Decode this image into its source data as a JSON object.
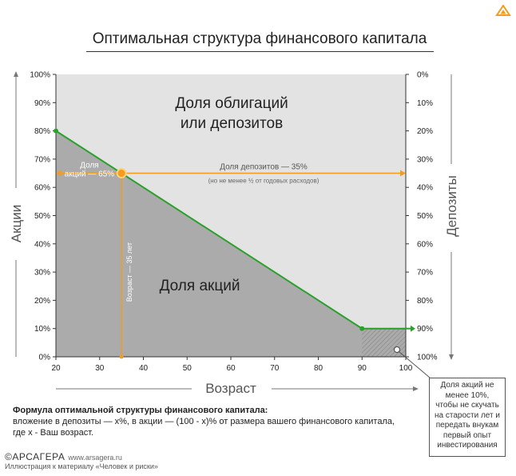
{
  "title": "Оптимальная структура финансового капитала",
  "formula": {
    "heading": "Формула оптимальной структуры финансового капитала:",
    "line1": "вложение в депозиты — x%, в акции — (100 - x)% от размера вашего финансового капитала,",
    "line2": "где x - Ваш возраст."
  },
  "footer": {
    "brand": "©АРСАГЕРА",
    "site": "www.arsagera.ru",
    "credit": "Иллюстрация к материалу «Человек и риски»"
  },
  "callout": "Доля акций не\nменее 10%,\nчтобы не скучать\nна старости лет и\nпередать внукам\nпервый опыт\nинвестирования",
  "colors": {
    "line": "#2ca02c",
    "orange": "#f39c1f",
    "upper": "#e3e3e3",
    "lower": "#ababab",
    "text_dark": "#222222"
  },
  "chart_data": {
    "type": "area",
    "title": "Оптимальная структура финансового капитала",
    "xlabel": "Возраст",
    "ylabel_left": "Акции",
    "ylabel_right": "Депозиты",
    "xlim": [
      20,
      100
    ],
    "ylim": [
      0,
      100
    ],
    "x_ticks": [
      "20",
      "30",
      "40",
      "50",
      "60",
      "70",
      "80",
      "90",
      "100"
    ],
    "y_ticks_left": [
      "0%",
      "10%",
      "20%",
      "30%",
      "40%",
      "50%",
      "60%",
      "70%",
      "80%",
      "90%",
      "100%"
    ],
    "y_ticks_right": [
      "0%",
      "10%",
      "20%",
      "30%",
      "40%",
      "50%",
      "60%",
      "70%",
      "80%",
      "90%",
      "100%"
    ],
    "series": [
      {
        "x": [
          20,
          90,
          100
        ],
        "y": [
          80,
          10,
          10
        ]
      }
    ],
    "region_labels": {
      "upper": "Доля облигаций\nили депозитов",
      "lower": "Доля акций"
    },
    "highlight": {
      "x": 35,
      "y": 65,
      "stock_label": "Доля\nакций — 65%",
      "deposit_label": "Доля депозитов — 35%",
      "deposit_sublabel": "(но не менее ½ от годовых расходов)",
      "age_label": "Возраст — 35 лет"
    }
  }
}
